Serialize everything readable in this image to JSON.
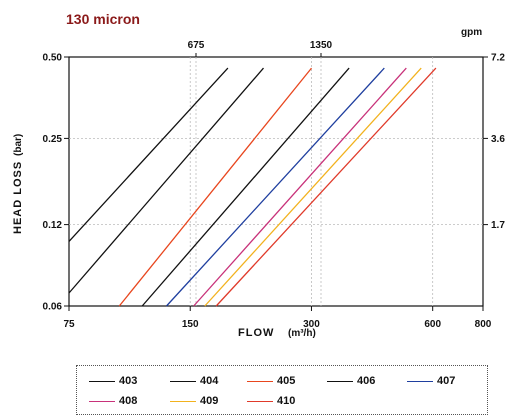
{
  "chart_data": {
    "type": "line",
    "title": "130 micron",
    "xlabel": "FLOW",
    "xlabel_unit": "(m³/h)",
    "ylabel": "HEAD LOSS",
    "ylabel_unit": "(bar)",
    "x_scale": "log",
    "y_scale": "log",
    "xlim": [
      75,
      800
    ],
    "ylim": [
      0.06,
      0.5
    ],
    "x_ticks": [
      75,
      150,
      300,
      600,
      800
    ],
    "y_ticks": [
      0.06,
      0.12,
      0.25,
      0.5
    ],
    "top_axis_unit": "gpm",
    "top_ticks": [
      675,
      1350
    ],
    "right_ticks": [
      7.2,
      3.6,
      1.7
    ],
    "grid": true,
    "legend_position": "bottom",
    "series": [
      {
        "name": "403",
        "color": "#111111",
        "x": [
          75,
          186
        ],
        "y": [
          0.104,
          0.455
        ]
      },
      {
        "name": "404",
        "color": "#111111",
        "x": [
          75,
          228
        ],
        "y": [
          0.067,
          0.455
        ]
      },
      {
        "name": "405",
        "color": "#e8461e",
        "x": [
          100,
          300
        ],
        "y": [
          0.06,
          0.455
        ]
      },
      {
        "name": "406",
        "color": "#111111",
        "x": [
          114,
          372
        ],
        "y": [
          0.06,
          0.455
        ]
      },
      {
        "name": "407",
        "color": "#1f3f9f",
        "x": [
          131,
          455
        ],
        "y": [
          0.06,
          0.455
        ]
      },
      {
        "name": "408",
        "color": "#c8327a",
        "x": [
          153,
          516
        ],
        "y": [
          0.06,
          0.455
        ]
      },
      {
        "name": "409",
        "color": "#f2b21e",
        "x": [
          163,
          562
        ],
        "y": [
          0.06,
          0.455
        ]
      },
      {
        "name": "410",
        "color": "#e03a2a",
        "x": [
          174,
          611
        ],
        "y": [
          0.06,
          0.455
        ]
      }
    ]
  }
}
